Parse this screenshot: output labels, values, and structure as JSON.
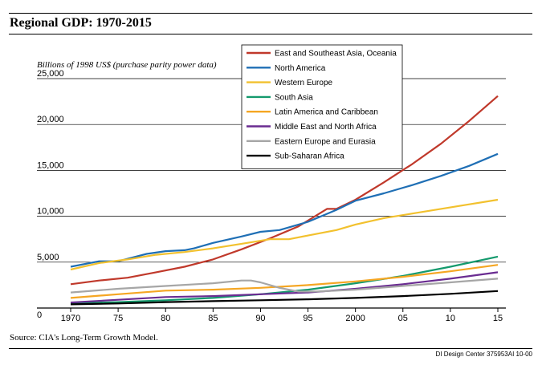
{
  "title": "Regional GDP: 1970-2015",
  "source": "Source: CIA's Long-Term Growth Model.",
  "credit": "DI Design Center  375953AI 10-00",
  "chart_data": {
    "type": "line",
    "ylabel": "Billions of 1998 US$ (purchase parity power data)",
    "xlabel": "",
    "xlim": [
      1970,
      2015
    ],
    "ylim": [
      0,
      25000
    ],
    "x_ticks": [
      1970,
      1975,
      1980,
      1985,
      1990,
      1995,
      2000,
      2005,
      2010,
      2015
    ],
    "x_tick_labels": [
      "1970",
      "75",
      "80",
      "85",
      "90",
      "95",
      "2000",
      "05",
      "10",
      "15"
    ],
    "y_ticks": [
      0,
      5000,
      10000,
      15000,
      20000,
      25000
    ],
    "y_tick_labels": [
      "0",
      "5,000",
      "10,000",
      "15,000",
      "20,000",
      "25,000"
    ],
    "grid": "horizontal",
    "legend_position": "top-right",
    "series": [
      {
        "name": "East and Southeast Asia, Oceania",
        "color": "#c0392b",
        "points": [
          [
            1970,
            2600
          ],
          [
            1973,
            3000
          ],
          [
            1976,
            3300
          ],
          [
            1979,
            3900
          ],
          [
            1982,
            4500
          ],
          [
            1985,
            5300
          ],
          [
            1988,
            6400
          ],
          [
            1991,
            7600
          ],
          [
            1994,
            8900
          ],
          [
            1997,
            10800
          ],
          [
            1998,
            10800
          ],
          [
            2000,
            11800
          ],
          [
            2003,
            13700
          ],
          [
            2006,
            15700
          ],
          [
            2009,
            17900
          ],
          [
            2012,
            20400
          ],
          [
            2015,
            23100
          ]
        ]
      },
      {
        "name": "North America",
        "color": "#1f6fb5",
        "points": [
          [
            1970,
            4500
          ],
          [
            1973,
            5100
          ],
          [
            1975,
            5100
          ],
          [
            1978,
            5900
          ],
          [
            1980,
            6200
          ],
          [
            1982,
            6300
          ],
          [
            1983,
            6500
          ],
          [
            1985,
            7100
          ],
          [
            1988,
            7800
          ],
          [
            1990,
            8300
          ],
          [
            1992,
            8500
          ],
          [
            1995,
            9400
          ],
          [
            1998,
            10700
          ],
          [
            2000,
            11700
          ],
          [
            2003,
            12500
          ],
          [
            2006,
            13400
          ],
          [
            2009,
            14400
          ],
          [
            2012,
            15500
          ],
          [
            2015,
            16800
          ]
        ]
      },
      {
        "name": "Western Europe",
        "color": "#f2c12e",
        "points": [
          [
            1970,
            4200
          ],
          [
            1973,
            4900
          ],
          [
            1976,
            5300
          ],
          [
            1979,
            5800
          ],
          [
            1982,
            6100
          ],
          [
            1985,
            6500
          ],
          [
            1988,
            7000
          ],
          [
            1991,
            7500
          ],
          [
            1993,
            7500
          ],
          [
            1995,
            7900
          ],
          [
            1998,
            8500
          ],
          [
            2000,
            9100
          ],
          [
            2003,
            9800
          ],
          [
            2006,
            10300
          ],
          [
            2009,
            10800
          ],
          [
            2012,
            11300
          ],
          [
            2015,
            11800
          ]
        ]
      },
      {
        "name": "South Asia",
        "color": "#149a6d",
        "points": [
          [
            1970,
            500
          ],
          [
            1975,
            650
          ],
          [
            1980,
            850
          ],
          [
            1985,
            1100
          ],
          [
            1990,
            1500
          ],
          [
            1995,
            2000
          ],
          [
            2000,
            2700
          ],
          [
            2005,
            3500
          ],
          [
            2010,
            4500
          ],
          [
            2015,
            5600
          ]
        ]
      },
      {
        "name": "Latin America and Caribbean",
        "color": "#f5a623",
        "points": [
          [
            1970,
            1100
          ],
          [
            1975,
            1500
          ],
          [
            1980,
            1900
          ],
          [
            1985,
            2000
          ],
          [
            1990,
            2200
          ],
          [
            1995,
            2500
          ],
          [
            2000,
            2900
          ],
          [
            2005,
            3400
          ],
          [
            2010,
            4000
          ],
          [
            2015,
            4700
          ]
        ]
      },
      {
        "name": "Middle East and North Africa",
        "color": "#6a2c91",
        "points": [
          [
            1970,
            600
          ],
          [
            1975,
            900
          ],
          [
            1980,
            1200
          ],
          [
            1985,
            1300
          ],
          [
            1990,
            1500
          ],
          [
            1995,
            1700
          ],
          [
            2000,
            2100
          ],
          [
            2005,
            2600
          ],
          [
            2010,
            3200
          ],
          [
            2015,
            3900
          ]
        ]
      },
      {
        "name": "Eastern Europe and Eurasia",
        "color": "#a6a6a6",
        "points": [
          [
            1970,
            1700
          ],
          [
            1975,
            2100
          ],
          [
            1980,
            2400
          ],
          [
            1985,
            2700
          ],
          [
            1988,
            3000
          ],
          [
            1989,
            3000
          ],
          [
            1990,
            2800
          ],
          [
            1992,
            2200
          ],
          [
            1994,
            1800
          ],
          [
            1996,
            1800
          ],
          [
            2000,
            2000
          ],
          [
            2005,
            2400
          ],
          [
            2010,
            2800
          ],
          [
            2015,
            3200
          ]
        ]
      },
      {
        "name": "Sub-Saharan Africa",
        "color": "#000000",
        "points": [
          [
            1970,
            400
          ],
          [
            1975,
            500
          ],
          [
            1980,
            650
          ],
          [
            1985,
            750
          ],
          [
            1990,
            850
          ],
          [
            1995,
            950
          ],
          [
            2000,
            1100
          ],
          [
            2005,
            1300
          ],
          [
            2010,
            1550
          ],
          [
            2015,
            1850
          ]
        ]
      }
    ]
  }
}
